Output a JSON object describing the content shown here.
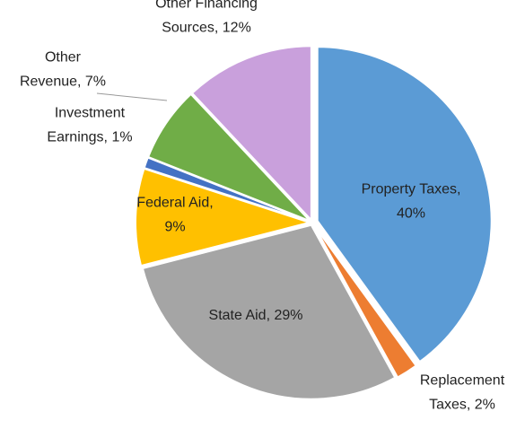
{
  "chart_data": {
    "type": "pie",
    "labels": [
      [
        "Property Taxes,",
        "40%"
      ],
      [
        "Replacement",
        "Taxes, 2%"
      ],
      [
        "State Aid, 29%"
      ],
      [
        "Federal Aid,",
        "9%"
      ],
      [
        "Investment",
        "Earnings, 1%"
      ],
      [
        "Other",
        "Revenue, 7%"
      ],
      [
        "Other Financing",
        "Sources, 12%"
      ]
    ],
    "values": [
      40,
      2,
      29,
      9,
      1,
      7,
      12
    ],
    "colors": [
      "#5b9bd5",
      "#ed7d31",
      "#a5a5a5",
      "#ffc000",
      "#4472c4",
      "#70ad47",
      "#c9a0dc"
    ]
  }
}
